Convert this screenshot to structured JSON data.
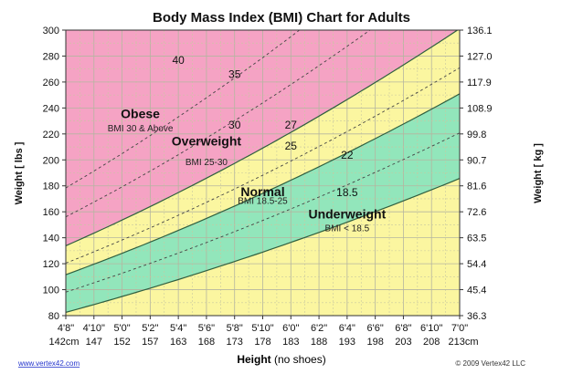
{
  "chart_data": {
    "type": "area",
    "title": "Body Mass Index (BMI) Chart for Adults",
    "xlabel_bold": "Height",
    "xlabel_rest": " (no shoes)",
    "ylabel": "Weight [ lbs ]",
    "y2label": "Weight [ kg ]",
    "formula": "weight_lbs = BMI * height_in^2 / 703",
    "xlim_in": [
      56,
      84
    ],
    "ylim_lbs": [
      80,
      300
    ],
    "x_ticks_ft": [
      "4'8\"",
      "4'10\"",
      "5'0\"",
      "5'2\"",
      "5'4\"",
      "5'6\"",
      "5'8\"",
      "5'10\"",
      "6'0\"",
      "6'2\"",
      "6'4\"",
      "6'6\"",
      "6'8\"",
      "6'10\"",
      "7'0\""
    ],
    "x_ticks_cm": [
      "142cm",
      "147",
      "152",
      "157",
      "163",
      "168",
      "173",
      "178",
      "183",
      "188",
      "193",
      "198",
      "203",
      "208",
      "213cm"
    ],
    "x_ticks_in": [
      56,
      58,
      60,
      62,
      64,
      66,
      68,
      70,
      72,
      74,
      76,
      78,
      80,
      82,
      84
    ],
    "y_ticks_lbs": [
      80,
      100,
      120,
      140,
      160,
      180,
      200,
      220,
      240,
      260,
      280,
      300
    ],
    "y2_ticks_kg": [
      "36.3",
      "45.4",
      "54.4",
      "63.5",
      "72.6",
      "81.6",
      "90.7",
      "99.8",
      "108.9",
      "117.9",
      "127.0",
      "136.1"
    ],
    "boundary_lines": [
      18.5,
      25,
      30
    ],
    "dashed_lines": [
      {
        "bmi": 22,
        "label": "22"
      },
      {
        "bmi": 27,
        "label": "27"
      },
      {
        "bmi": 35,
        "label": "35"
      },
      {
        "bmi": 40,
        "label": "40"
      }
    ],
    "boundary_labels": [
      {
        "bmi": 18.5,
        "label": "18.5"
      },
      {
        "bmi": 25,
        "label": "25"
      },
      {
        "bmi": 30,
        "label": "30"
      }
    ],
    "zones": [
      {
        "name": "Obese",
        "range": "BMI 30 & Above",
        "color": "#f5a3c4"
      },
      {
        "name": "Overweight",
        "range": "BMI 25-30",
        "color": "#fbf6a0"
      },
      {
        "name": "Normal",
        "range": "BMI 18.5-25",
        "color": "#92e6bb"
      },
      {
        "name": "Underweight",
        "range": "BMI < 18.5",
        "color": "#fbf6a0"
      }
    ]
  },
  "footer": {
    "link": "www.vertex42.com",
    "copyright": "© 2009 Vertex42 LLC"
  }
}
